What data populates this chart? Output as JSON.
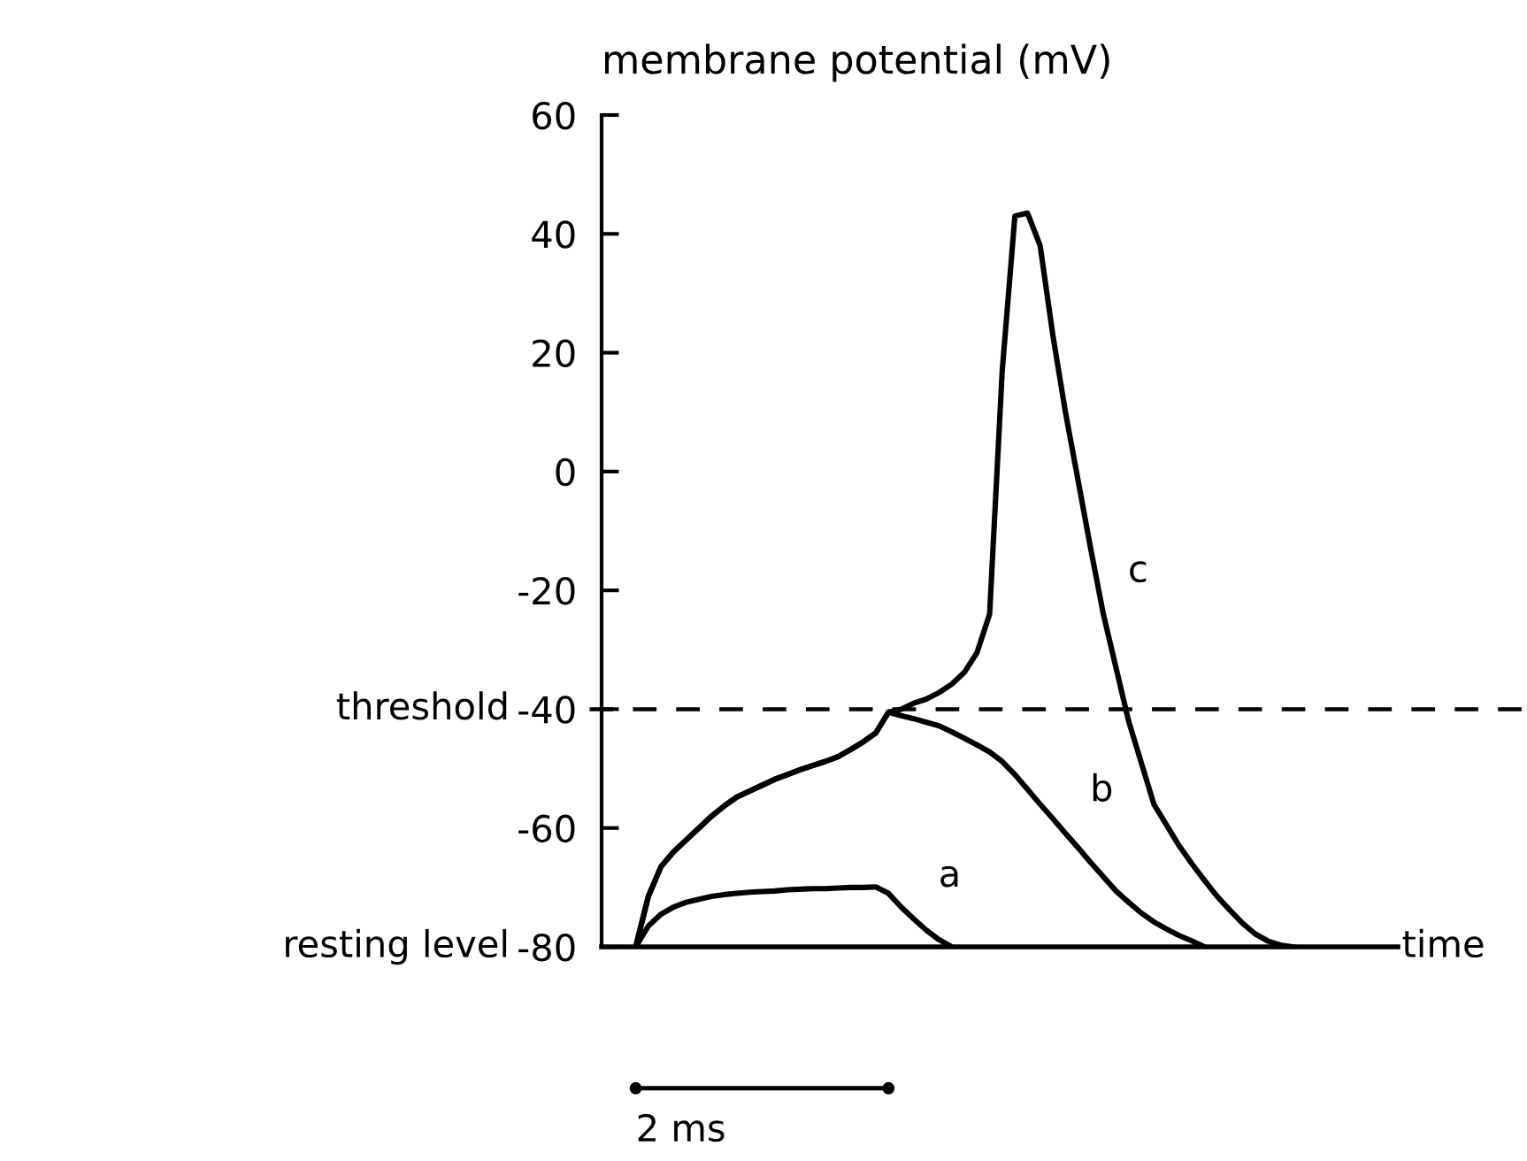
{
  "chart_data": {
    "type": "line",
    "ylabel": "membrane potential (mV)",
    "xlabel": "time",
    "ylim": [
      -80,
      60
    ],
    "yticks": [
      -80,
      -60,
      -40,
      -20,
      0,
      20,
      40,
      60
    ],
    "tick_labels": "y",
    "line_style": "solid",
    "categories": [
      null,
      null,
      null,
      null,
      null,
      null,
      null,
      null,
      null,
      null,
      null,
      null,
      null,
      null,
      null,
      null,
      null,
      null,
      null,
      null,
      null,
      null,
      null,
      null,
      null,
      null,
      null,
      null,
      null,
      null,
      null,
      null,
      null,
      null,
      null,
      null,
      null,
      null,
      null,
      null,
      null,
      null,
      null,
      null,
      null,
      null,
      null,
      null,
      null,
      null,
      null,
      null,
      null,
      null,
      null,
      null,
      null,
      null,
      null,
      null,
      null
    ],
    "series": [
      {
        "name": "a",
        "color": "#000000",
        "values": [
          -80,
          -76.5,
          -74.5,
          -73.3,
          -72.5,
          -72,
          -71.5,
          -71.2,
          -71,
          -70.8,
          -70.7,
          -70.6,
          -70.4,
          -70.3,
          -70.2,
          -70.2,
          -70.1,
          -70,
          -70,
          -69.9,
          -71,
          -73.3,
          -75.3,
          -77.2,
          -78.8,
          -80,
          null,
          null,
          null,
          null,
          null,
          null,
          null,
          null,
          null,
          null,
          null,
          null,
          null,
          null,
          null,
          null,
          null,
          null,
          null,
          null,
          null,
          null,
          null,
          null,
          null,
          null,
          null,
          null,
          null,
          null,
          null,
          null,
          null,
          null,
          null
        ]
      },
      {
        "name": "b",
        "color": "#000000",
        "values": [
          -80,
          -71.5,
          -66.5,
          -64,
          -62,
          -60,
          -58,
          -56.3,
          -54.8,
          -53.8,
          -52.8,
          -51.8,
          -51,
          -50.2,
          -49.5,
          -48.8,
          -48,
          -46.8,
          -45.5,
          -44,
          -40.5,
          -41.1,
          -41.6,
          -42.2,
          -42.8,
          -43.8,
          -44.9,
          -46,
          -47.2,
          -48.8,
          -51,
          -53.5,
          -56,
          -58.4,
          -60.9,
          -63.3,
          -65.8,
          -68.2,
          -70.6,
          -72.5,
          -74.3,
          -75.8,
          -77,
          -78.1,
          -79,
          -80,
          null,
          null,
          null,
          null,
          null,
          null,
          null,
          null,
          null,
          null,
          null,
          null,
          null,
          null,
          null
        ]
      },
      {
        "name": "c",
        "color": "#000000",
        "values": [
          -80,
          -71.5,
          -66.5,
          -64,
          -62,
          -60,
          -58,
          -56.3,
          -54.8,
          -53.8,
          -52.8,
          -51.8,
          -51,
          -50.2,
          -49.5,
          -48.8,
          -48,
          -46.8,
          -45.5,
          -44,
          -40.5,
          -40,
          -39,
          -38.3,
          -37.2,
          -35.8,
          -33.8,
          -30.5,
          -24,
          17,
          43,
          43.5,
          38,
          23,
          10,
          -1.5,
          -13,
          -24,
          -33,
          -42,
          -49,
          -56,
          -59.5,
          -63,
          -66,
          -68.8,
          -71.5,
          -73.8,
          -76,
          -77.8,
          -79,
          -79.7,
          -80,
          null,
          null,
          null,
          null,
          null,
          null,
          null,
          null
        ]
      }
    ],
    "ref_lines": [
      {
        "axis": "y",
        "value": -40,
        "label": "threshold",
        "line_style": "dashed",
        "color": "#000000"
      },
      {
        "axis": "y",
        "value": -80,
        "label": "resting level",
        "line_style": "solid",
        "color": "#000000"
      }
    ],
    "annotations": [
      "2 ms"
    ]
  }
}
